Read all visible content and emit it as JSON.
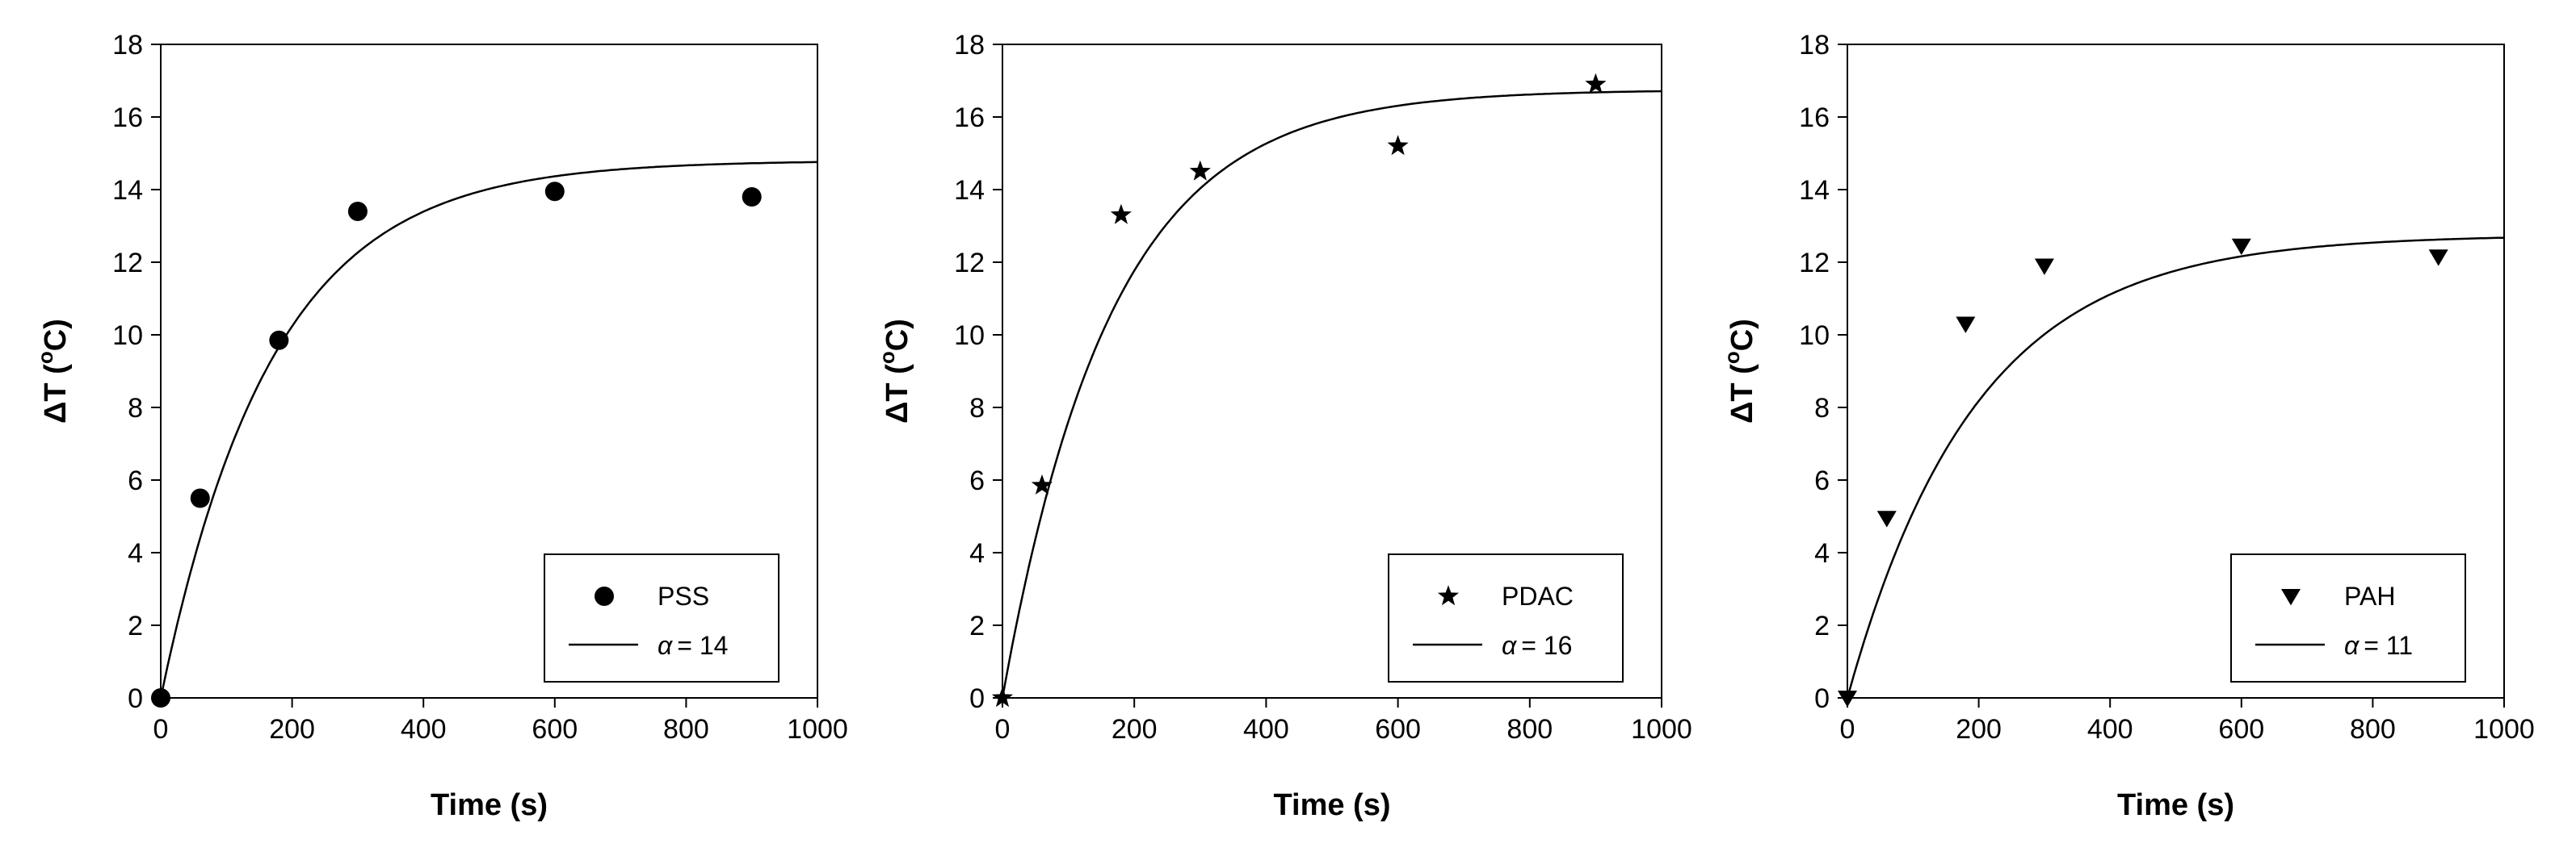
{
  "chart_data": [
    {
      "type": "scatter",
      "xlabel": "Time (s)",
      "ylabel_base": "ΔT (",
      "ylabel_sup": "o",
      "ylabel_unit": "C)",
      "xlim": [
        0,
        1000
      ],
      "ylim": [
        0,
        18
      ],
      "xticks": [
        0,
        200,
        400,
        600,
        800,
        1000
      ],
      "yticks": [
        0,
        2,
        4,
        6,
        8,
        10,
        12,
        14,
        16,
        18
      ],
      "grid": false,
      "legend_position": "bottom-right",
      "marker": "circle",
      "series": [
        {
          "name": "PSS",
          "kind": "points",
          "x": [
            0,
            60,
            180,
            300,
            600,
            900
          ],
          "y": [
            0,
            5.5,
            9.85,
            13.4,
            13.95,
            13.8
          ]
        },
        {
          "name": "= 14",
          "legend_symbol": "α",
          "kind": "fit",
          "model": "exponential_saturation",
          "asymptote": 14.8,
          "tau": 170
        }
      ]
    },
    {
      "type": "scatter",
      "xlabel": "Time (s)",
      "ylabel_base": "ΔT (",
      "ylabel_sup": "o",
      "ylabel_unit": "C)",
      "xlim": [
        0,
        1000
      ],
      "ylim": [
        0,
        18
      ],
      "xticks": [
        0,
        200,
        400,
        600,
        800,
        1000
      ],
      "yticks": [
        0,
        2,
        4,
        6,
        8,
        10,
        12,
        14,
        16,
        18
      ],
      "grid": false,
      "legend_position": "bottom-right",
      "marker": "star",
      "series": [
        {
          "name": "PDAC",
          "kind": "points",
          "x": [
            0,
            60,
            180,
            300,
            600,
            900
          ],
          "y": [
            0,
            5.85,
            13.3,
            14.5,
            15.2,
            16.9
          ]
        },
        {
          "name": "= 16",
          "legend_symbol": "α",
          "kind": "fit",
          "model": "exponential_saturation",
          "asymptote": 16.75,
          "tau": 165
        }
      ]
    },
    {
      "type": "scatter",
      "xlabel": "Time (s)",
      "ylabel_base": "ΔT (",
      "ylabel_sup": "o",
      "ylabel_unit": "C)",
      "xlim": [
        0,
        1000
      ],
      "ylim": [
        0,
        18
      ],
      "xticks": [
        0,
        200,
        400,
        600,
        800,
        1000
      ],
      "yticks": [
        0,
        2,
        4,
        6,
        8,
        10,
        12,
        14,
        16,
        18
      ],
      "grid": false,
      "legend_position": "bottom-right",
      "marker": "triangle-down",
      "series": [
        {
          "name": "PAH",
          "kind": "points",
          "x": [
            0,
            60,
            180,
            300,
            600,
            900
          ],
          "y": [
            0,
            4.95,
            10.3,
            11.9,
            12.45,
            12.15
          ]
        },
        {
          "name": "= 11",
          "legend_symbol": "α",
          "kind": "fit",
          "model": "exponential_saturation",
          "asymptote": 12.75,
          "tau": 195
        }
      ]
    }
  ],
  "colors": {
    "background": "#ffffff",
    "ink": "#000000"
  }
}
